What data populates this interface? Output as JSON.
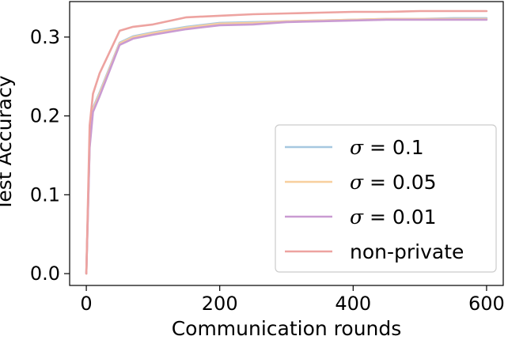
{
  "chart_data": {
    "type": "line",
    "title": "",
    "xlabel": "Communication rounds",
    "ylabel": "Test Accuracy",
    "xlim": [
      -25,
      625
    ],
    "ylim": [
      -0.015,
      0.345
    ],
    "xticks": [
      0,
      200,
      400,
      600
    ],
    "xtick_labels": [
      "0",
      "200",
      "400",
      "600"
    ],
    "yticks": [
      0.0,
      0.1,
      0.2,
      0.3
    ],
    "ytick_labels": [
      "0.0",
      "0.1",
      "0.2",
      "0.3"
    ],
    "grid": false,
    "legend_position": "lower-right",
    "x": [
      0,
      5,
      10,
      20,
      50,
      70,
      100,
      150,
      200,
      250,
      300,
      350,
      400,
      450,
      500,
      550,
      600
    ],
    "series": [
      {
        "name": "σ = 0.1",
        "legend_symbol": "σ",
        "legend_rest": " = 0.1",
        "color": "#a6c8e0",
        "values": [
          0.0,
          0.165,
          0.21,
          0.23,
          0.293,
          0.301,
          0.306,
          0.313,
          0.318,
          0.319,
          0.32,
          0.321,
          0.322,
          0.323,
          0.323,
          0.324,
          0.324
        ]
      },
      {
        "name": "σ = 0.05",
        "legend_symbol": "σ",
        "legend_rest": " = 0.05",
        "color": "#f8cf9e",
        "values": [
          0.0,
          0.163,
          0.208,
          0.228,
          0.292,
          0.3,
          0.305,
          0.312,
          0.317,
          0.318,
          0.32,
          0.321,
          0.322,
          0.323,
          0.323,
          0.323,
          0.323
        ]
      },
      {
        "name": "σ = 0.01",
        "legend_symbol": "σ",
        "legend_rest": " = 0.01",
        "color": "#c99bd2",
        "values": [
          0.0,
          0.16,
          0.205,
          0.225,
          0.29,
          0.298,
          0.303,
          0.31,
          0.315,
          0.316,
          0.319,
          0.32,
          0.321,
          0.322,
          0.322,
          0.322,
          0.322
        ]
      },
      {
        "name": "non-private",
        "legend_symbol": "",
        "legend_rest": "non-private",
        "color": "#eda3a0",
        "values": [
          0.0,
          0.188,
          0.228,
          0.254,
          0.308,
          0.313,
          0.316,
          0.325,
          0.327,
          0.329,
          0.33,
          0.331,
          0.332,
          0.332,
          0.333,
          0.333,
          0.333
        ]
      }
    ]
  }
}
